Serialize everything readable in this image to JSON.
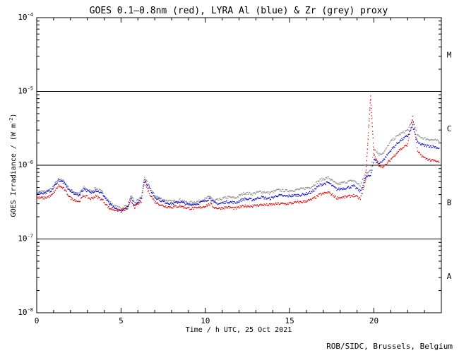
{
  "chart_data": {
    "type": "scatter",
    "title": "GOES 0.1—0.8nm (red), LYRA Al (blue) & Zr (grey) proxy",
    "xlabel": "Time / h UTC, 25 Oct 2021",
    "ylabel_main": "GOES Irradiance / (W m",
    "ylabel_exp": "-2",
    "ylabel_close": ")",
    "xlim": [
      0,
      24
    ],
    "ylim": [
      1e-08,
      0.0001
    ],
    "yscale": "log",
    "x_ticks": [
      0,
      5,
      10,
      15,
      20
    ],
    "y_ticks": [
      {
        "base": "10",
        "exp": "-8",
        "value": 1e-08
      },
      {
        "base": "10",
        "exp": "-7",
        "value": 1e-07
      },
      {
        "base": "10",
        "exp": "-6",
        "value": 1e-06
      },
      {
        "base": "10",
        "exp": "-5",
        "value": 1e-05
      },
      {
        "base": "10",
        "exp": "-4",
        "value": 0.0001
      }
    ],
    "flare_class_lines": [
      1e-07,
      1e-06,
      1e-05
    ],
    "flare_classes": [
      {
        "label": "A",
        "value": 3.16e-08
      },
      {
        "label": "B",
        "value": 3.16e-07
      },
      {
        "label": "C",
        "value": 3.16e-06
      },
      {
        "label": "M",
        "value": 3.16e-05
      }
    ],
    "series": [
      {
        "color": "#888888",
        "x": [
          0,
          0.5,
          0.9,
          1.3,
          1.6,
          2.0,
          2.5,
          2.8,
          3.2,
          3.5,
          3.9,
          4.3,
          4.6,
          5.0,
          5.4,
          5.6,
          5.8,
          6.2,
          6.4,
          6.6,
          7.0,
          7.5,
          8.0,
          8.5,
          9.0,
          9.5,
          10.0,
          10.3,
          10.5,
          10.8,
          11.3,
          11.8,
          12.3,
          12.8,
          13.3,
          13.8,
          14.3,
          14.8,
          15.3,
          15.8,
          16.3,
          16.8,
          17.3,
          17.8,
          18.3,
          18.8,
          19.2,
          19.5,
          19.8,
          20.0,
          20.3,
          20.6,
          21.0,
          21.5,
          22.0,
          22.3,
          22.6,
          23.0,
          23.5,
          23.9
        ],
        "y": [
          4.4e-07,
          4.4e-07,
          4.8e-07,
          6.6e-07,
          6.1e-07,
          4.6e-07,
          4.1e-07,
          5e-07,
          4.4e-07,
          4.9e-07,
          4.3e-07,
          3.2e-07,
          2.8e-07,
          2.6e-07,
          2.9e-07,
          3.9e-07,
          3.1e-07,
          3.7e-07,
          6.9e-07,
          5.5e-07,
          3.9e-07,
          3.4e-07,
          3.2e-07,
          3.4e-07,
          3.1e-07,
          3.2e-07,
          3.5e-07,
          3.8e-07,
          3.3e-07,
          3.4e-07,
          3.7e-07,
          3.6e-07,
          4.2e-07,
          4.1e-07,
          4.4e-07,
          4.2e-07,
          4.6e-07,
          4.5e-07,
          4.6e-07,
          4.8e-07,
          5.1e-07,
          6.3e-07,
          6.8e-07,
          5.5e-07,
          5.9e-07,
          6.2e-07,
          5.3e-07,
          7.9e-07,
          8.4e-07,
          1.7e-06,
          1.4e-06,
          1.5e-06,
          2.1e-06,
          2.6e-06,
          3e-06,
          4e-06,
          2.5e-06,
          2.3e-06,
          2.2e-06,
          2.1e-06
        ]
      },
      {
        "color": "#0000cc",
        "x": [
          0,
          0.5,
          0.9,
          1.3,
          1.6,
          2.0,
          2.5,
          2.8,
          3.2,
          3.5,
          3.9,
          4.3,
          4.6,
          5.0,
          5.4,
          5.6,
          5.8,
          6.2,
          6.4,
          6.6,
          7.0,
          7.5,
          8.0,
          8.5,
          9.0,
          9.5,
          10.0,
          10.3,
          10.5,
          10.8,
          11.3,
          11.8,
          12.3,
          12.8,
          13.3,
          13.8,
          14.3,
          14.8,
          15.3,
          15.8,
          16.3,
          16.8,
          17.3,
          17.8,
          18.3,
          18.8,
          19.2,
          19.5,
          19.8,
          20.0,
          20.3,
          20.6,
          21.0,
          21.5,
          22.0,
          22.3,
          22.6,
          23.0,
          23.5,
          23.9
        ],
        "y": [
          4.2e-07,
          4.2e-07,
          4.6e-07,
          6.3e-07,
          5.8e-07,
          4.4e-07,
          3.9e-07,
          4.8e-07,
          4.2e-07,
          4.6e-07,
          4.1e-07,
          3e-07,
          2.6e-07,
          2.4e-07,
          2.7e-07,
          3.7e-07,
          2.9e-07,
          3.5e-07,
          6.6e-07,
          5.2e-07,
          3.7e-07,
          3.2e-07,
          3e-07,
          3.2e-07,
          2.9e-07,
          3e-07,
          3.3e-07,
          3.6e-07,
          3.1e-07,
          3e-07,
          3.2e-07,
          3.1e-07,
          3.5e-07,
          3.4e-07,
          3.7e-07,
          3.5e-07,
          3.9e-07,
          3.8e-07,
          3.9e-07,
          4e-07,
          4.3e-07,
          5.4e-07,
          5.8e-07,
          4.7e-07,
          4.9e-07,
          5.2e-07,
          4.4e-07,
          6.8e-07,
          7.3e-07,
          1.2e-06,
          1.05e-06,
          1.2e-06,
          1.6e-06,
          2.1e-06,
          2.5e-06,
          3.4e-06,
          2e-06,
          1.85e-06,
          1.8e-06,
          1.7e-06
        ]
      },
      {
        "color": "#dd0000",
        "x": [
          0,
          0.5,
          0.9,
          1.3,
          1.6,
          2.0,
          2.5,
          2.8,
          3.2,
          3.5,
          3.9,
          4.3,
          4.6,
          5.0,
          5.4,
          5.6,
          5.8,
          6.2,
          6.4,
          6.6,
          7.0,
          7.5,
          8.0,
          8.5,
          9.0,
          9.5,
          10.0,
          10.3,
          10.5,
          10.8,
          11.3,
          11.8,
          12.3,
          12.8,
          13.3,
          13.8,
          14.3,
          14.8,
          15.3,
          15.8,
          16.3,
          16.8,
          17.3,
          17.8,
          18.3,
          18.8,
          19.2,
          19.5,
          19.8,
          20.0,
          20.3,
          20.6,
          21.0,
          21.5,
          22.0,
          22.3,
          22.6,
          23.0,
          23.5,
          23.9
        ],
        "y": [
          3.6e-07,
          3.6e-07,
          3.9e-07,
          5.3e-07,
          4.8e-07,
          3.6e-07,
          3.2e-07,
          3.9e-07,
          3.5e-07,
          3.8e-07,
          3.4e-07,
          2.6e-07,
          2.5e-07,
          2.4e-07,
          2.6e-07,
          3.3e-07,
          2.7e-07,
          3.2e-07,
          6e-07,
          4.5e-07,
          3.2e-07,
          2.8e-07,
          2.7e-07,
          2.8e-07,
          2.6e-07,
          2.6e-07,
          2.8e-07,
          3e-07,
          2.7e-07,
          2.6e-07,
          2.7e-07,
          2.6e-07,
          2.8e-07,
          2.8e-07,
          2.9e-07,
          2.9e-07,
          3e-07,
          3e-07,
          3.1e-07,
          3.2e-07,
          3.4e-07,
          4e-07,
          4.3e-07,
          3.6e-07,
          3.7e-07,
          3.9e-07,
          3.5e-07,
          6e-07,
          8.6e-06,
          1.4e-06,
          1e-06,
          9.5e-07,
          1.2e-06,
          1.6e-06,
          1.9e-06,
          4.6e-06,
          1.5e-06,
          1.25e-06,
          1.15e-06,
          1.1e-06
        ]
      }
    ]
  },
  "footer": {
    "credit": "ROB/SIDC, Brussels, Belgium"
  }
}
